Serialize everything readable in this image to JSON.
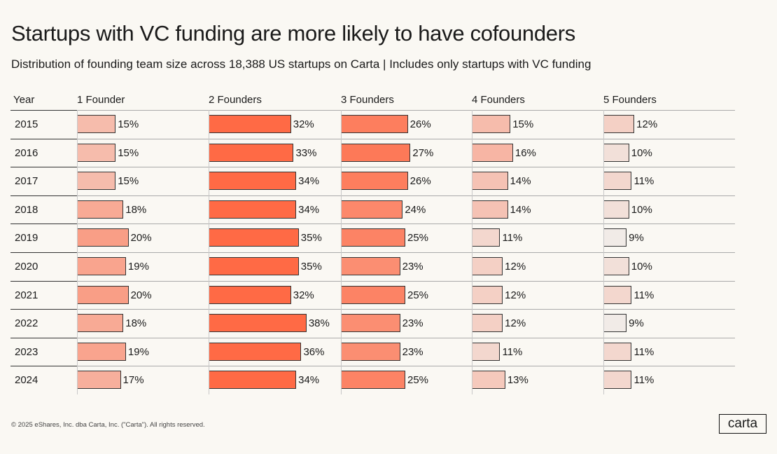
{
  "title": "Startups with VC funding are more likely to have cofounders",
  "subtitle": "Distribution of founding team size across 18,388 US startups on Carta | Includes only startups with VC funding",
  "footer": "© 2025 eShares, Inc. dba Carta, Inc. (\"Carta\"). All rights reserved.",
  "logo": "carta",
  "colors": {
    "low": "#f1ebe7",
    "high": "#ff6a45",
    "background": "#faf8f3"
  },
  "chart_data": {
    "type": "table",
    "row_header": "Year",
    "categories": [
      "2015",
      "2016",
      "2017",
      "2018",
      "2019",
      "2020",
      "2021",
      "2022",
      "2023",
      "2024"
    ],
    "series": [
      {
        "name": "1 Founder",
        "values": [
          15,
          15,
          15,
          18,
          20,
          19,
          20,
          18,
          19,
          17
        ]
      },
      {
        "name": "2 Founders",
        "values": [
          32,
          33,
          34,
          34,
          35,
          35,
          32,
          38,
          36,
          34
        ]
      },
      {
        "name": "3 Founders",
        "values": [
          26,
          27,
          26,
          24,
          25,
          23,
          25,
          23,
          23,
          25
        ]
      },
      {
        "name": "4 Founders",
        "values": [
          15,
          16,
          14,
          14,
          11,
          12,
          12,
          12,
          11,
          13
        ]
      },
      {
        "name": "5 Founders",
        "values": [
          12,
          10,
          11,
          10,
          9,
          10,
          11,
          9,
          11,
          11
        ]
      }
    ],
    "unit": "%"
  }
}
